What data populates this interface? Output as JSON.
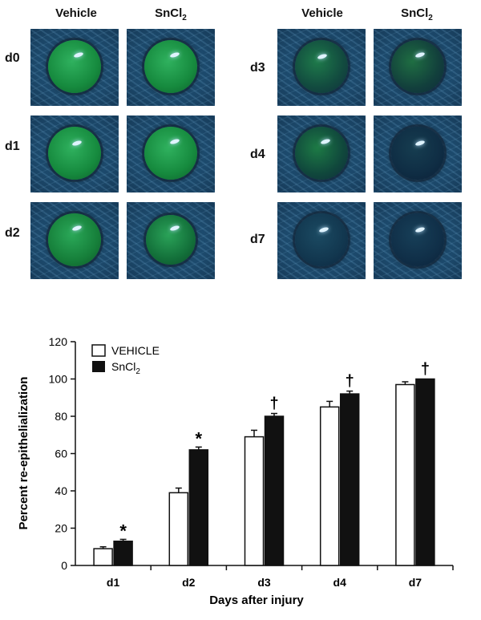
{
  "figure_top": {
    "col_labels": [
      "Vehicle",
      "SnCl",
      "2"
    ],
    "left_rows": [
      "d0",
      "d1",
      "d2"
    ],
    "right_rows": [
      "d3",
      "d4",
      "d7"
    ]
  },
  "chart_data": {
    "type": "bar",
    "categories": [
      "d1",
      "d2",
      "d3",
      "d4",
      "d7"
    ],
    "series": [
      {
        "name": "VEHICLE",
        "values": [
          9,
          39,
          69,
          85,
          97
        ],
        "errors": [
          1,
          2.5,
          3.5,
          3,
          1.5
        ],
        "color": "#ffffff"
      },
      {
        "name": "SnCl2",
        "values": [
          13,
          62,
          80,
          92,
          100
        ],
        "errors": [
          1,
          1.5,
          1.5,
          1.5,
          0
        ],
        "color": "#111111"
      }
    ],
    "significance": [
      "*",
      "*",
      "†",
      "†",
      "†"
    ],
    "xlabel": "Days after injury",
    "ylabel": "Percent re-epithelialization",
    "ylim": [
      0,
      120
    ],
    "yticks": [
      0,
      20,
      40,
      60,
      80,
      100,
      120
    ],
    "legend": {
      "vehicle": "VEHICLE",
      "sncl": "SnCl",
      "sub": "2"
    },
    "legend_position": "top-left"
  }
}
